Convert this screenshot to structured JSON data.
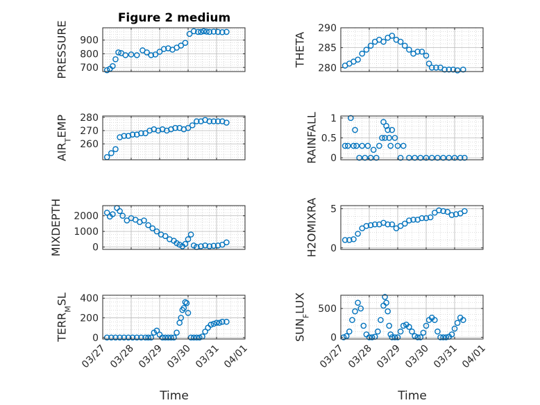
{
  "figure": {
    "title": "Figure 2 medium",
    "xlabel": "Time"
  },
  "colors": {
    "marker": "#0072BD",
    "axis": "#262626",
    "grid": "#b8b8b8"
  },
  "chart_data": [
    {
      "type": "scatter",
      "ylabel": "PRESSURE",
      "ylim": [
        670,
        990
      ],
      "yticks": [
        700,
        800,
        900
      ],
      "xlim": [
        0,
        5
      ],
      "grid": true,
      "x": [
        0.15,
        0.25,
        0.35,
        0.45,
        0.55,
        0.65,
        0.8,
        1.0,
        1.2,
        1.4,
        1.55,
        1.7,
        1.85,
        2.0,
        2.15,
        2.3,
        2.45,
        2.6,
        2.75,
        2.9,
        3.05,
        3.2,
        3.35,
        3.45,
        3.55,
        3.65,
        3.75,
        3.9,
        4.05,
        4.2,
        4.35
      ],
      "y": [
        680,
        690,
        710,
        760,
        810,
        805,
        790,
        795,
        790,
        825,
        810,
        790,
        795,
        815,
        835,
        840,
        830,
        845,
        860,
        880,
        945,
        965,
        960,
        960,
        965,
        962,
        960,
        962,
        960,
        958,
        960
      ]
    },
    {
      "type": "scatter",
      "ylabel": "THETA",
      "ylim": [
        279,
        290
      ],
      "yticks": [
        280,
        285,
        290
      ],
      "xlim": [
        0,
        5
      ],
      "grid": true,
      "x": [
        0.15,
        0.3,
        0.45,
        0.6,
        0.75,
        0.9,
        1.05,
        1.2,
        1.35,
        1.5,
        1.65,
        1.8,
        1.95,
        2.1,
        2.25,
        2.4,
        2.55,
        2.7,
        2.85,
        3.0,
        3.1,
        3.2,
        3.35,
        3.5,
        3.65,
        3.8,
        3.95,
        4.1,
        4.3
      ],
      "y": [
        280.5,
        281,
        281.5,
        282,
        283.5,
        284.5,
        285.5,
        286.5,
        287,
        286.5,
        287.5,
        288,
        287,
        286.5,
        285.5,
        284.5,
        283.5,
        284,
        284,
        283,
        281,
        280,
        280,
        280,
        279.5,
        279.5,
        279.5,
        279.3,
        279.5
      ]
    },
    {
      "type": "scatter",
      "ylabel": "AIR_TEMP",
      "ylim": [
        248,
        281
      ],
      "yticks": [
        260,
        270,
        280
      ],
      "xlim": [
        0,
        5
      ],
      "grid": true,
      "x": [
        0.15,
        0.3,
        0.45,
        0.6,
        0.75,
        0.9,
        1.05,
        1.2,
        1.35,
        1.5,
        1.65,
        1.8,
        1.95,
        2.1,
        2.25,
        2.4,
        2.55,
        2.7,
        2.85,
        3.0,
        3.15,
        3.3,
        3.45,
        3.6,
        3.75,
        3.9,
        4.05,
        4.2,
        4.35
      ],
      "y": [
        250,
        253,
        256,
        265,
        266,
        266,
        267,
        267,
        268,
        268,
        270,
        271,
        270,
        271,
        270,
        271,
        272,
        272,
        271,
        272,
        274,
        277,
        277,
        278,
        277,
        277,
        277,
        277,
        276
      ]
    },
    {
      "type": "scatter",
      "ylabel": "RAINFALL",
      "ylim": [
        -0.05,
        1.05
      ],
      "yticks": [
        0,
        0.5,
        1
      ],
      "xlim": [
        0,
        5
      ],
      "grid": true,
      "x": [
        0.15,
        0.25,
        0.35,
        0.45,
        0.5,
        0.55,
        0.65,
        0.75,
        0.85,
        0.95,
        1.05,
        1.15,
        1.25,
        1.35,
        1.45,
        1.5,
        1.55,
        1.6,
        1.65,
        1.7,
        1.75,
        1.8,
        1.9,
        2.0,
        2.1,
        2.2,
        2.4,
        2.6,
        2.8,
        3.0,
        3.2,
        3.4,
        3.6,
        3.8,
        4.0,
        4.2,
        4.35
      ],
      "y": [
        0.3,
        0.3,
        1.0,
        0.3,
        0.7,
        0.3,
        0,
        0.3,
        0,
        0.3,
        0,
        0.2,
        0,
        0.3,
        0.5,
        0.9,
        0.5,
        0.8,
        0.7,
        0.5,
        0.3,
        0.7,
        0.5,
        0.3,
        0,
        0.3,
        0,
        0,
        0,
        0,
        0,
        0,
        0,
        0,
        0,
        0,
        0
      ]
    },
    {
      "type": "scatter",
      "ylabel": "MIXDEPTH",
      "ylim": [
        -150,
        2650
      ],
      "yticks": [
        0,
        1000,
        2000
      ],
      "xlim": [
        0,
        5
      ],
      "grid": true,
      "x": [
        0.15,
        0.25,
        0.35,
        0.5,
        0.6,
        0.7,
        0.85,
        1.0,
        1.15,
        1.3,
        1.45,
        1.6,
        1.75,
        1.9,
        2.05,
        2.2,
        2.35,
        2.5,
        2.6,
        2.7,
        2.8,
        2.9,
        3.0,
        3.1,
        3.2,
        3.3,
        3.45,
        3.6,
        3.75,
        3.9,
        4.05,
        4.2,
        4.35
      ],
      "y": [
        2200,
        1950,
        2100,
        2500,
        2300,
        2000,
        1700,
        1850,
        1750,
        1600,
        1700,
        1400,
        1200,
        1000,
        800,
        700,
        500,
        400,
        250,
        150,
        50,
        200,
        500,
        800,
        100,
        0,
        50,
        100,
        50,
        80,
        100,
        150,
        300
      ]
    },
    {
      "type": "scatter",
      "ylabel": "H2OMIXRA",
      "ylim": [
        -0.2,
        5.4
      ],
      "yticks": [
        0,
        5
      ],
      "xlim": [
        0,
        5
      ],
      "grid": true,
      "x": [
        0.15,
        0.3,
        0.45,
        0.6,
        0.75,
        0.9,
        1.05,
        1.2,
        1.35,
        1.5,
        1.65,
        1.8,
        1.95,
        2.1,
        2.25,
        2.4,
        2.55,
        2.7,
        2.85,
        3.0,
        3.15,
        3.3,
        3.45,
        3.6,
        3.75,
        3.9,
        4.05,
        4.2,
        4.35
      ],
      "y": [
        1,
        1,
        1.1,
        1.8,
        2.5,
        2.8,
        2.9,
        3,
        3,
        3.2,
        3,
        3,
        2.5,
        2.8,
        3.1,
        3.5,
        3.6,
        3.6,
        3.8,
        3.8,
        3.9,
        4.5,
        4.8,
        4.7,
        4.6,
        4.2,
        4.3,
        4.4,
        4.7
      ]
    },
    {
      "type": "scatter",
      "ylabel": "TERR_MSL",
      "ylim": [
        -15,
        430
      ],
      "yticks": [
        0,
        200,
        400
      ],
      "xlim": [
        0,
        5
      ],
      "grid": true,
      "x": [
        0.15,
        0.3,
        0.45,
        0.6,
        0.75,
        0.9,
        1.05,
        1.2,
        1.35,
        1.5,
        1.6,
        1.7,
        1.8,
        1.9,
        2.0,
        2.1,
        2.2,
        2.3,
        2.4,
        2.5,
        2.6,
        2.7,
        2.75,
        2.8,
        2.85,
        2.9,
        2.95,
        3.0,
        3.1,
        3.2,
        3.3,
        3.4,
        3.5,
        3.6,
        3.7,
        3.8,
        3.9,
        4.0,
        4.1,
        4.2,
        4.35
      ],
      "y": [
        0,
        0,
        0,
        0,
        0,
        0,
        0,
        0,
        0,
        0,
        0,
        0,
        50,
        70,
        30,
        0,
        0,
        0,
        0,
        0,
        50,
        150,
        200,
        280,
        300,
        360,
        350,
        250,
        0,
        0,
        0,
        0,
        10,
        60,
        100,
        130,
        140,
        150,
        150,
        160,
        160
      ]
    },
    {
      "type": "scatter",
      "ylabel": "SUN_FLUX",
      "ylim": [
        -30,
        730
      ],
      "yticks": [
        0,
        500
      ],
      "xlim": [
        0,
        5
      ],
      "grid": true,
      "x": [
        0.1,
        0.2,
        0.3,
        0.4,
        0.5,
        0.6,
        0.7,
        0.8,
        0.9,
        1.0,
        1.1,
        1.2,
        1.3,
        1.4,
        1.5,
        1.55,
        1.6,
        1.65,
        1.7,
        1.75,
        1.8,
        1.9,
        2.0,
        2.1,
        2.2,
        2.3,
        2.4,
        2.5,
        2.6,
        2.7,
        2.8,
        2.9,
        3.0,
        3.1,
        3.2,
        3.3,
        3.4,
        3.5,
        3.6,
        3.7,
        3.8,
        3.9,
        4.0,
        4.1,
        4.2,
        4.3
      ],
      "y": [
        0,
        20,
        100,
        300,
        450,
        600,
        500,
        200,
        50,
        0,
        0,
        10,
        100,
        300,
        550,
        700,
        600,
        450,
        200,
        50,
        0,
        0,
        0,
        100,
        200,
        220,
        180,
        100,
        20,
        0,
        0,
        80,
        200,
        300,
        340,
        300,
        100,
        0,
        0,
        0,
        10,
        50,
        150,
        250,
        340,
        300
      ]
    }
  ],
  "x_ticks": [
    "03/27",
    "03/28",
    "03/29",
    "03/30",
    "03/31",
    "04/01"
  ]
}
